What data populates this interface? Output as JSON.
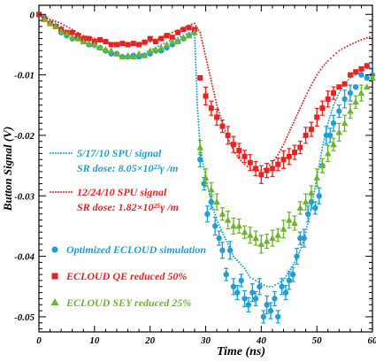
{
  "chart_data": {
    "type": "scatter",
    "xlabel": "Time (ns)",
    "ylabel": "Button Signal (V)",
    "xlim": [
      0,
      60
    ],
    "ylim": [
      -0.0525,
      0.0015
    ],
    "xticks": [
      "0",
      "10",
      "20",
      "30",
      "40",
      "50",
      "60"
    ],
    "yticks": [
      "0",
      "-0.01",
      "-0.02",
      "-0.03",
      "-0.04",
      "-0.05"
    ],
    "grid": false,
    "legend_position": "left",
    "colors": {
      "blue": "#1f9fd4",
      "red": "#e8231f",
      "green": "#6cb52d"
    },
    "annotations": [
      {
        "series": "spu_blue",
        "lines": [
          "5/17/10 SPU signal",
          "SR dose: 8.05×10²³γ /m"
        ]
      },
      {
        "series": "spu_red",
        "lines": [
          "12/24/10 SPU signal",
          "SR dose: 1.82×10²⁵γ /m"
        ]
      }
    ],
    "series": [
      {
        "key": "spu_blue",
        "style": "dotted",
        "color": "#1f9fd4",
        "x": [
          0,
          2,
          4,
          6,
          8,
          10,
          12,
          14,
          16,
          18,
          20,
          22,
          24,
          26,
          27,
          28,
          28.5,
          29,
          30,
          31,
          32,
          33,
          34,
          35,
          36,
          37,
          38,
          39,
          40,
          41,
          42,
          43,
          44,
          45,
          46,
          47,
          48,
          49,
          50,
          51,
          52,
          53,
          54,
          55,
          56,
          57,
          58,
          59,
          60
        ],
        "y": [
          0,
          -0.001,
          -0.002,
          -0.0035,
          -0.0045,
          -0.0055,
          -0.006,
          -0.0068,
          -0.007,
          -0.0068,
          -0.006,
          -0.005,
          -0.0042,
          -0.0035,
          -0.003,
          -0.003,
          -0.015,
          -0.022,
          -0.027,
          -0.031,
          -0.034,
          -0.036,
          -0.038,
          -0.04,
          -0.041,
          -0.042,
          -0.0435,
          -0.044,
          -0.0445,
          -0.045,
          -0.045,
          -0.0445,
          -0.044,
          -0.0425,
          -0.041,
          -0.039,
          -0.036,
          -0.032,
          -0.027,
          -0.022,
          -0.018,
          -0.015,
          -0.013,
          -0.0115,
          -0.0105,
          -0.01,
          -0.0095,
          -0.009,
          -0.0085
        ]
      },
      {
        "key": "spu_red",
        "style": "dotted",
        "color": "#e8231f",
        "x": [
          0,
          2,
          4,
          6,
          8,
          10,
          12,
          14,
          16,
          18,
          20,
          22,
          24,
          26,
          27,
          28,
          29,
          30,
          31,
          32,
          33,
          34,
          35,
          36,
          37,
          38,
          39,
          40,
          41,
          42,
          43,
          44,
          45,
          46,
          47,
          48,
          49,
          50,
          51,
          52,
          53,
          54,
          55,
          56,
          57,
          58,
          59,
          60
        ],
        "y": [
          0,
          -0.0008,
          -0.0015,
          -0.0025,
          -0.0035,
          -0.004,
          -0.0045,
          -0.005,
          -0.0052,
          -0.005,
          -0.0045,
          -0.0038,
          -0.003,
          -0.0022,
          -0.0018,
          -0.0015,
          -0.003,
          -0.007,
          -0.011,
          -0.015,
          -0.018,
          -0.0205,
          -0.0225,
          -0.0238,
          -0.0248,
          -0.0255,
          -0.0258,
          -0.0258,
          -0.0253,
          -0.0245,
          -0.0232,
          -0.0215,
          -0.0195,
          -0.0175,
          -0.0155,
          -0.0135,
          -0.0117,
          -0.01,
          -0.0087,
          -0.0077,
          -0.0068,
          -0.006,
          -0.0055,
          -0.005,
          -0.0046,
          -0.0042,
          -0.0039,
          -0.0036
        ]
      },
      {
        "key": "sim",
        "name": "Optimized ECLOUD simulation",
        "style": "circle",
        "color": "#1f9fd4",
        "x": [
          1,
          2,
          3,
          4,
          5,
          6,
          7,
          8,
          9,
          10,
          11,
          12,
          13,
          14,
          15,
          16,
          17,
          18,
          19,
          20,
          21,
          22,
          23,
          24,
          25,
          26,
          27,
          29,
          29.7,
          30.3,
          31,
          31.7,
          32.4,
          33,
          33.7,
          34.4,
          35,
          35.7,
          36.4,
          37,
          37.7,
          38.4,
          39,
          39.7,
          40.4,
          41,
          41.7,
          42.4,
          43,
          43.7,
          44.4,
          45,
          45.7,
          46.4,
          47,
          47.7,
          48.4,
          49,
          49.7,
          50.4,
          51,
          51.7,
          52.4,
          53,
          54,
          55,
          56,
          57,
          58,
          59,
          60
        ],
        "y": [
          -0.0005,
          -0.0015,
          -0.002,
          -0.003,
          -0.0035,
          -0.004,
          -0.004,
          -0.0045,
          -0.005,
          -0.005,
          -0.0055,
          -0.006,
          -0.0065,
          -0.0065,
          -0.007,
          -0.007,
          -0.0068,
          -0.007,
          -0.0068,
          -0.0065,
          -0.006,
          -0.006,
          -0.0055,
          -0.005,
          -0.0045,
          -0.004,
          -0.0035,
          -0.024,
          -0.028,
          -0.033,
          -0.031,
          -0.035,
          -0.037,
          -0.039,
          -0.043,
          -0.039,
          -0.045,
          -0.046,
          -0.044,
          -0.047,
          -0.048,
          -0.046,
          -0.047,
          -0.045,
          -0.05,
          -0.048,
          -0.049,
          -0.047,
          -0.05,
          -0.045,
          -0.046,
          -0.044,
          -0.043,
          -0.04,
          -0.037,
          -0.037,
          -0.033,
          -0.031,
          -0.032,
          -0.03,
          -0.025,
          -0.02,
          -0.02,
          -0.018,
          -0.016,
          -0.014,
          -0.013,
          -0.012,
          -0.01,
          -0.0105,
          -0.01
        ]
      },
      {
        "key": "qe",
        "name": "ECLOUD QE reduced 50%",
        "style": "square",
        "color": "#e8231f",
        "x": [
          0,
          1,
          2,
          3,
          4,
          5,
          6,
          7,
          8,
          9,
          10,
          11,
          12,
          13,
          14,
          15,
          16,
          17,
          18,
          19,
          20,
          21,
          22,
          23,
          24,
          25,
          26,
          27,
          28,
          29,
          30,
          31,
          32,
          33,
          34,
          35,
          36,
          37,
          38,
          39,
          40,
          41,
          42,
          43,
          44,
          45,
          46,
          47,
          48,
          49,
          50,
          51,
          52,
          53,
          54,
          55,
          56,
          57,
          58,
          59
        ],
        "y": [
          0,
          -0.0008,
          -0.0015,
          -0.002,
          -0.0025,
          -0.003,
          -0.003,
          -0.0035,
          -0.004,
          -0.004,
          -0.0045,
          -0.0042,
          -0.0045,
          -0.005,
          -0.005,
          -0.0048,
          -0.005,
          -0.0048,
          -0.005,
          -0.0046,
          -0.004,
          -0.0045,
          -0.004,
          -0.0035,
          -0.0038,
          -0.003,
          -0.0025,
          -0.0022,
          -0.0025,
          -0.0105,
          -0.0135,
          -0.0155,
          -0.017,
          -0.0185,
          -0.02,
          -0.0215,
          -0.0225,
          -0.0235,
          -0.0245,
          -0.0255,
          -0.0265,
          -0.0258,
          -0.0255,
          -0.0248,
          -0.024,
          -0.0235,
          -0.0228,
          -0.022,
          -0.02,
          -0.019,
          -0.017,
          -0.0155,
          -0.014,
          -0.013,
          -0.012,
          -0.0115,
          -0.01,
          -0.0095,
          -0.009,
          -0.0085
        ]
      },
      {
        "key": "sey",
        "name": "ECLOUD SEY reduced 25%",
        "style": "triangle",
        "color": "#6cb52d",
        "x": [
          1,
          2,
          3,
          4,
          5,
          6,
          7,
          8,
          9,
          10,
          11,
          12,
          13,
          14,
          15,
          16,
          17,
          18,
          19,
          20,
          21,
          22,
          23,
          24,
          25,
          26,
          27,
          28,
          29,
          30,
          31,
          32,
          33,
          34,
          35,
          36,
          37,
          38,
          39,
          40,
          41,
          42,
          43,
          44,
          45,
          46,
          47,
          48,
          49,
          50,
          51,
          52,
          53,
          54,
          55,
          56,
          57,
          58,
          59,
          60
        ],
        "y": [
          -0.0008,
          -0.0015,
          -0.002,
          -0.0028,
          -0.0032,
          -0.0038,
          -0.004,
          -0.0045,
          -0.0048,
          -0.005,
          -0.0055,
          -0.0058,
          -0.006,
          -0.0065,
          -0.007,
          -0.0068,
          -0.007,
          -0.0065,
          -0.0068,
          -0.006,
          -0.0058,
          -0.0055,
          -0.005,
          -0.0045,
          -0.0045,
          -0.0038,
          -0.0035,
          -0.003,
          -0.022,
          -0.027,
          -0.029,
          -0.031,
          -0.033,
          -0.034,
          -0.035,
          -0.035,
          -0.036,
          -0.0365,
          -0.037,
          -0.038,
          -0.0375,
          -0.037,
          -0.0365,
          -0.0355,
          -0.034,
          -0.0345,
          -0.032,
          -0.031,
          -0.0295,
          -0.027,
          -0.025,
          -0.023,
          -0.0215,
          -0.0195,
          -0.018,
          -0.016,
          -0.0145,
          -0.013,
          -0.012,
          -0.0105
        ]
      }
    ]
  }
}
